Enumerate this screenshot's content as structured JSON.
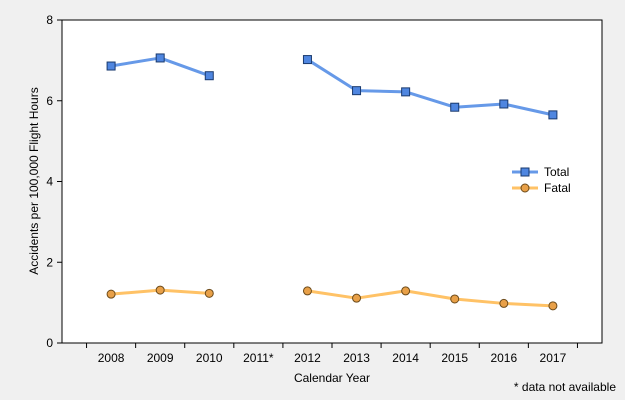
{
  "chart_data": {
    "type": "line",
    "title": "",
    "xlabel": "Calendar Year",
    "ylabel": "Accidents per 100,000 Flight Hours",
    "categories": [
      "2008",
      "2009",
      "2010",
      "2011*",
      "2012",
      "2013",
      "2014",
      "2015",
      "2016",
      "2017"
    ],
    "ylim": [
      0,
      8
    ],
    "yticks": [
      "0",
      "2",
      "4",
      "6",
      "8"
    ],
    "grid": false,
    "legend_position": "right",
    "series": [
      {
        "name": "Total",
        "color": "#6699e8",
        "marker_color": "#4f86e0",
        "marker": "square",
        "values": [
          6.86,
          7.06,
          6.62,
          null,
          7.02,
          6.25,
          6.22,
          5.84,
          5.92,
          5.65
        ]
      },
      {
        "name": "Fatal",
        "color": "#ffc266",
        "marker_color": "#e8a048",
        "marker": "circle",
        "values": [
          1.21,
          1.31,
          1.23,
          null,
          1.29,
          1.11,
          1.29,
          1.09,
          0.98,
          0.92
        ]
      }
    ],
    "annotations": [
      "* data not available"
    ]
  }
}
